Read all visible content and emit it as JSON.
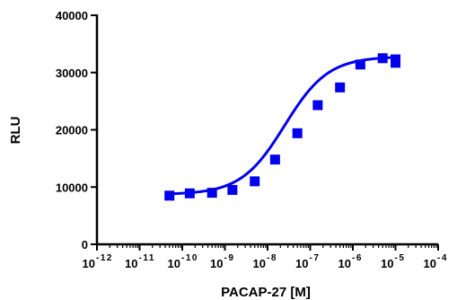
{
  "chart_data": {
    "type": "scatter",
    "title": "",
    "xlabel": "PACAP-27 [M]",
    "ylabel": "RLU",
    "x_scale": "log",
    "xlim": [
      1e-12,
      0.0001
    ],
    "ylim": [
      0,
      40000
    ],
    "x_tick_labels": [
      {
        "base": "10",
        "exp": "-12"
      },
      {
        "base": "10",
        "exp": "-11"
      },
      {
        "base": "10",
        "exp": "-10"
      },
      {
        "base": "10",
        "exp": "-9"
      },
      {
        "base": "10",
        "exp": "-8"
      },
      {
        "base": "10",
        "exp": "-7"
      },
      {
        "base": "10",
        "exp": "-6"
      },
      {
        "base": "10",
        "exp": "-5"
      },
      {
        "base": "10",
        "exp": "-4"
      }
    ],
    "y_tick_labels": [
      "0",
      "10000",
      "20000",
      "30000",
      "40000"
    ],
    "grid": false,
    "series": [
      {
        "color": "#0000ee",
        "marker": "square",
        "points": [
          {
            "x": 5e-11,
            "y": 8500
          },
          {
            "x": 1.5e-10,
            "y": 8900
          },
          {
            "x": 5e-10,
            "y": 9000
          },
          {
            "x": 1.5e-09,
            "y": 9500
          },
          {
            "x": 5e-09,
            "y": 11000
          },
          {
            "x": 1.5e-08,
            "y": 14800
          },
          {
            "x": 5e-08,
            "y": 19400
          },
          {
            "x": 1.5e-07,
            "y": 24300
          },
          {
            "x": 5e-07,
            "y": 27400
          },
          {
            "x": 1.5e-06,
            "y": 31400
          },
          {
            "x": 5e-06,
            "y": 32500
          },
          {
            "x": 1e-05,
            "y": 31700
          },
          {
            "x": 1e-05,
            "y": 32300
          }
        ],
        "fit": {
          "model": "sigmoidal-dose-response",
          "bottom": 8700,
          "top": 32800,
          "log_ec50": -7.6,
          "hill_slope": 0.85,
          "x_range": [
            5e-11,
            1e-05
          ]
        }
      }
    ]
  }
}
